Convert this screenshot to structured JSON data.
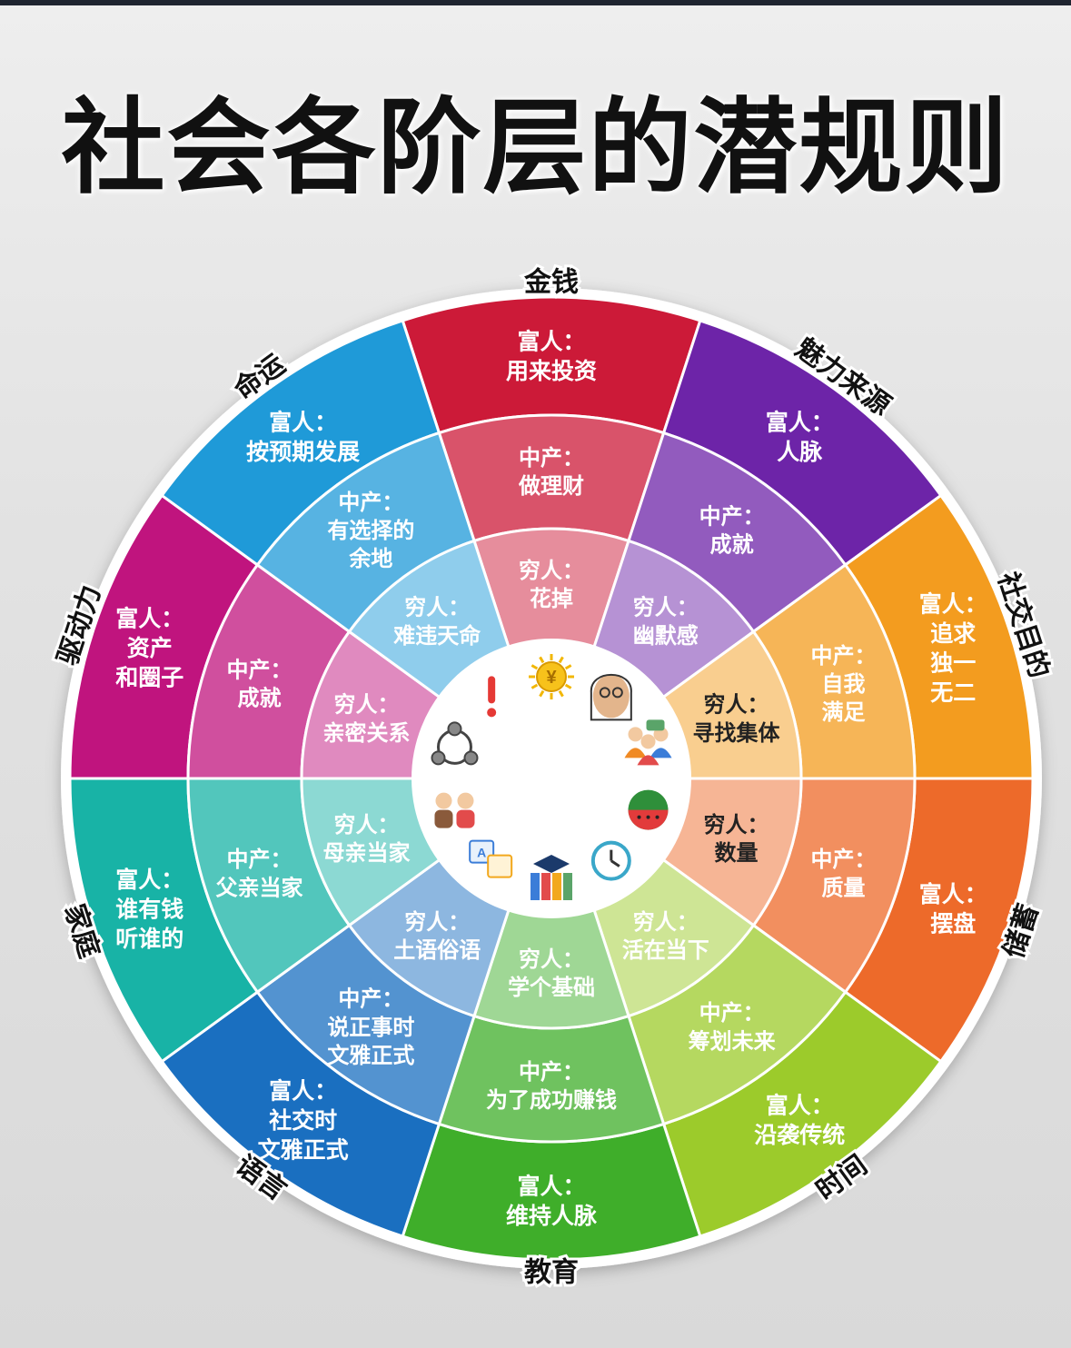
{
  "title": "社会各阶层的潜规则",
  "rings": [
    "富人",
    "中产",
    "穷人"
  ],
  "segments": [
    {
      "category": "金钱",
      "color": "#cc1a38",
      "rich": [
        "富人：",
        "用来投资"
      ],
      "middle": [
        "中产：",
        "做理财"
      ],
      "poor": [
        "穷人：",
        "花掉"
      ],
      "icon": "coin-sun-icon"
    },
    {
      "category": "魅力来源",
      "color": "#6d24a8",
      "rich": [
        "富人：",
        "人脉"
      ],
      "middle": [
        "中产：",
        "成就"
      ],
      "poor": [
        "穷人：",
        "幽默感"
      ],
      "icon": "woman-portrait-icon"
    },
    {
      "category": "社交目的",
      "color": "#f39c1f",
      "rich": [
        "富人：",
        "追求",
        "独一",
        "无二"
      ],
      "middle": [
        "中产：",
        "自我",
        "满足"
      ],
      "poor": [
        "穷人：",
        "寻找集体"
      ],
      "icon": "people-group-icon"
    },
    {
      "category": "储蓄",
      "color": "#ed6a2a",
      "rich": [
        "富人：",
        "摆盘"
      ],
      "middle": [
        "中产：",
        "质量"
      ],
      "poor": [
        "穷人：",
        "数量"
      ],
      "icon": "watermelon-icon"
    },
    {
      "category": "时间",
      "color": "#9ccb2b",
      "rich": [
        "富人：",
        "沿袭传统"
      ],
      "middle": [
        "中产：",
        "筹划未来"
      ],
      "poor": [
        "穷人：",
        "活在当下"
      ],
      "icon": "clock-icon"
    },
    {
      "category": "教育",
      "color": "#3fae2a",
      "rich": [
        "富人：",
        "维持人脉"
      ],
      "middle": [
        "中产：",
        "为了成功赚钱"
      ],
      "poor": [
        "穷人：",
        "学个基础"
      ],
      "icon": "books-graduation-icon"
    },
    {
      "category": "语言",
      "color": "#1a6fc0",
      "rich": [
        "富人：",
        "社交时",
        "文雅正式"
      ],
      "middle": [
        "中产：",
        "说正事时",
        "文雅正式"
      ],
      "poor": [
        "穷人：",
        "土语俗语"
      ],
      "icon": "translate-icon"
    },
    {
      "category": "家庭",
      "color": "#18b3a6",
      "rich": [
        "富人：",
        "谁有钱",
        "听谁的"
      ],
      "middle": [
        "中产：",
        "父亲当家"
      ],
      "poor": [
        "穷人：",
        "母亲当家"
      ],
      "icon": "family-icon"
    },
    {
      "category": "驱动力",
      "color": "#c0147e",
      "rich": [
        "富人：",
        "资产",
        "和圈子"
      ],
      "middle": [
        "中产：",
        "成就"
      ],
      "poor": [
        "穷人：",
        "亲密关系"
      ],
      "icon": "network-gears-icon"
    },
    {
      "category": "命运",
      "color": "#1f9ad8",
      "rich": [
        "富人：",
        "按预期发展"
      ],
      "middle": [
        "中产：",
        "有选择的",
        "余地"
      ],
      "poor": [
        "穷人：",
        "难违天命"
      ],
      "icon": "exclamation-icon"
    }
  ]
}
